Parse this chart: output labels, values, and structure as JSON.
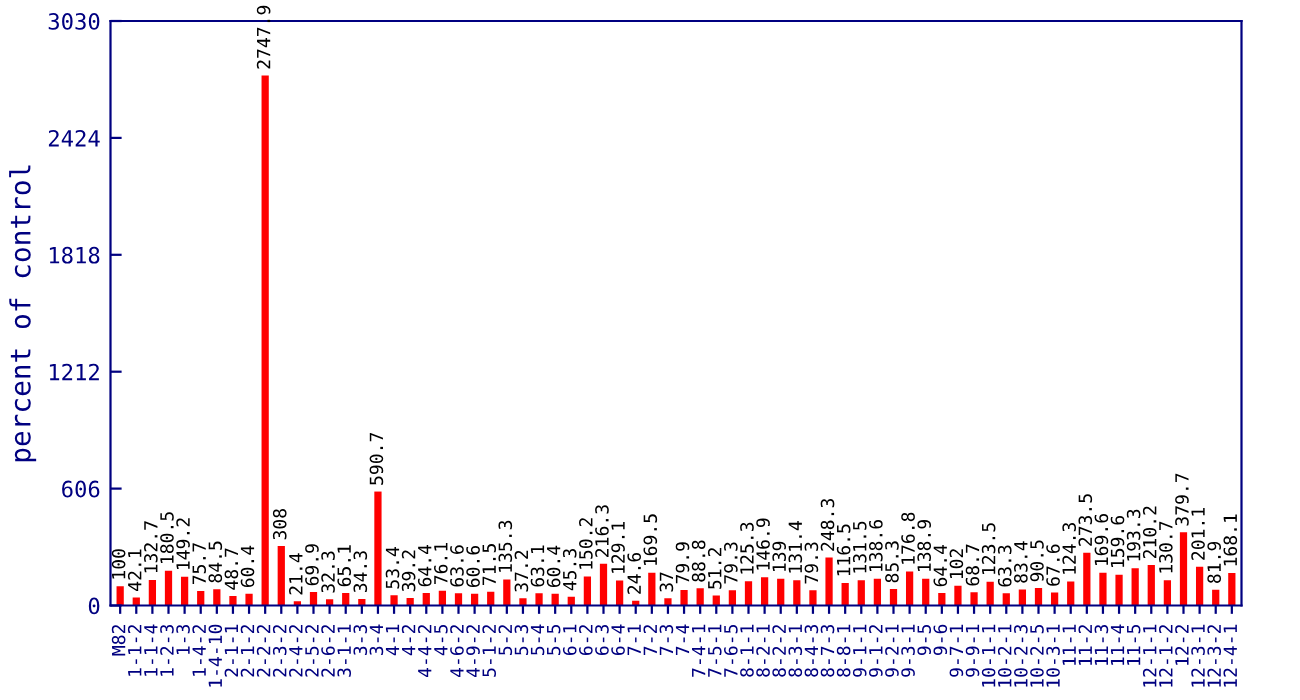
{
  "chart_data": {
    "type": "bar",
    "ylabel": "percent of control",
    "color": "#ff0000",
    "categories": [
      "M82",
      "1-1-2",
      "1-1-4",
      "1-2-3",
      "1-3",
      "1-4-2",
      "1-4-10",
      "2-1-1",
      "2-1-2",
      "2-2-2",
      "2-3-2",
      "2-4-2",
      "2-5-2",
      "2-6-2",
      "3-1-1",
      "3-3",
      "3-4",
      "4-1",
      "4-2",
      "4-4-2",
      "4-5",
      "4-6-2",
      "4-9-2",
      "5-1-2",
      "5-2",
      "5-3",
      "5-4",
      "5-5",
      "6-1",
      "6-2",
      "6-3",
      "6-4",
      "7-1",
      "7-2",
      "7-3",
      "7-4",
      "7-4-1",
      "7-5-1",
      "7-6-5",
      "8-1-1",
      "8-2-1",
      "8-2-2",
      "8-3-1",
      "8-4-3",
      "8-7-3",
      "8-8-1",
      "9-1-1",
      "9-1-2",
      "9-2-1",
      "9-3-1",
      "9-5",
      "9-6",
      "9-7-1",
      "9-9-1",
      "10-1-1",
      "10-2-1",
      "10-2-3",
      "10-2-5",
      "10-3-1",
      "11-1",
      "11-2",
      "11-3",
      "11-4",
      "11-5",
      "12-1-1",
      "12-1-2",
      "12-2",
      "12-3-1",
      "12-3-2",
      "12-4-1"
    ],
    "values": [
      100,
      42.1,
      132.7,
      180.5,
      149.2,
      75.7,
      84.5,
      48.7,
      60.4,
      2747.9,
      308,
      21.4,
      69.9,
      32.3,
      65.1,
      34.3,
      590.7,
      53.4,
      39.2,
      64.4,
      76.1,
      63.6,
      60.6,
      71.5,
      135.3,
      37.2,
      63.1,
      60.4,
      45.3,
      150.2,
      216.3,
      129.1,
      24.6,
      169.5,
      37,
      79.9,
      88.8,
      51.2,
      79.3,
      125.3,
      146.9,
      139,
      131.4,
      79.3,
      248.3,
      116.5,
      131.5,
      138.6,
      85.3,
      176.8,
      138.9,
      64.4,
      102,
      68.7,
      123.5,
      63.3,
      83.4,
      90.5,
      67.6,
      124.3,
      273.5,
      169.6,
      159.6,
      193.3,
      210.2,
      130.7,
      379.7,
      201.1,
      81.9,
      168.1
    ],
    "ylim": [
      0,
      3030
    ],
    "yticks": [
      0,
      606,
      1212,
      1818,
      2424,
      3030
    ],
    "data_labels": true,
    "grid": false,
    "legend": false
  }
}
